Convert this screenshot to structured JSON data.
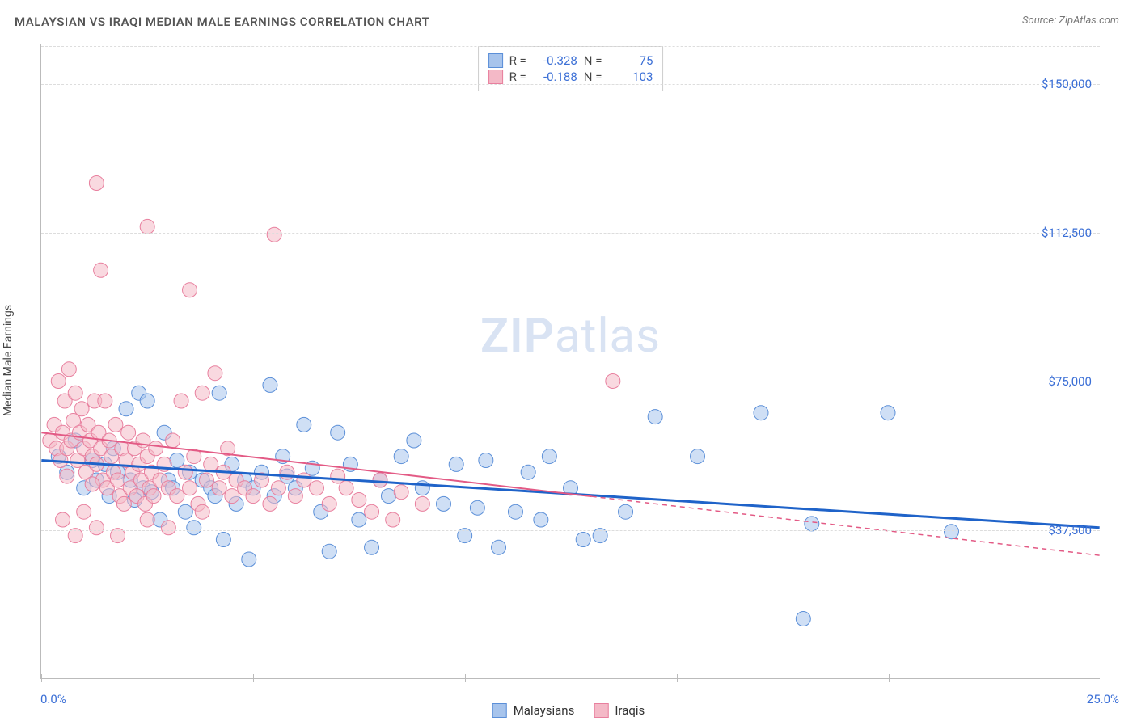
{
  "title": "MALAYSIAN VS IRAQI MEDIAN MALE EARNINGS CORRELATION CHART",
  "source_label": "Source: ZipAtlas.com",
  "y_axis_label": "Median Male Earnings",
  "watermark_main": "ZIP",
  "watermark_sub": "atlas",
  "chart": {
    "type": "scatter",
    "background_color": "#ffffff",
    "grid_color": "#dddddd",
    "axis_color": "#bbbbbb",
    "tick_label_color": "#3b6fd6",
    "xlim": [
      0,
      25
    ],
    "ylim": [
      0,
      160000
    ],
    "y_ticks": [
      {
        "value": 37500,
        "label": "$37,500"
      },
      {
        "value": 75000,
        "label": "$75,000"
      },
      {
        "value": 112500,
        "label": "$112,500"
      },
      {
        "value": 150000,
        "label": "$150,000"
      }
    ],
    "x_tick_positions": [
      0,
      5,
      10,
      15,
      20,
      25
    ],
    "x_min_label": "0.0%",
    "x_max_label": "25.0%",
    "marker_radius": 9,
    "marker_opacity": 0.55,
    "series": [
      {
        "name": "Malaysians",
        "color_fill": "#a7c4ec",
        "color_stroke": "#5b8fd8",
        "trend_color": "#1f63c9",
        "trend_width": 3,
        "trend_dash": "none",
        "R": "-0.328",
        "N": "75",
        "trend": {
          "x1": 0,
          "y1": 55000,
          "x2": 25,
          "y2": 38000
        },
        "points": [
          [
            0.4,
            56000
          ],
          [
            0.6,
            52000
          ],
          [
            0.8,
            60000
          ],
          [
            1.0,
            48000
          ],
          [
            1.2,
            55000
          ],
          [
            1.3,
            50000
          ],
          [
            1.5,
            54000
          ],
          [
            1.6,
            46000
          ],
          [
            1.7,
            58000
          ],
          [
            1.8,
            52000
          ],
          [
            2.0,
            68000
          ],
          [
            2.1,
            50000
          ],
          [
            2.2,
            45000
          ],
          [
            2.3,
            72000
          ],
          [
            2.4,
            48000
          ],
          [
            2.5,
            70000
          ],
          [
            2.6,
            47000
          ],
          [
            2.8,
            40000
          ],
          [
            2.9,
            62000
          ],
          [
            3.0,
            50000
          ],
          [
            3.1,
            48000
          ],
          [
            3.2,
            55000
          ],
          [
            3.4,
            42000
          ],
          [
            3.5,
            52000
          ],
          [
            3.6,
            38000
          ],
          [
            3.8,
            50000
          ],
          [
            4.0,
            48000
          ],
          [
            4.1,
            46000
          ],
          [
            4.2,
            72000
          ],
          [
            4.3,
            35000
          ],
          [
            4.5,
            54000
          ],
          [
            4.6,
            44000
          ],
          [
            4.8,
            50000
          ],
          [
            4.9,
            30000
          ],
          [
            5.0,
            48000
          ],
          [
            5.2,
            52000
          ],
          [
            5.4,
            74000
          ],
          [
            5.5,
            46000
          ],
          [
            5.7,
            56000
          ],
          [
            5.8,
            51000
          ],
          [
            6.0,
            48000
          ],
          [
            6.2,
            64000
          ],
          [
            6.4,
            53000
          ],
          [
            6.6,
            42000
          ],
          [
            6.8,
            32000
          ],
          [
            7.0,
            62000
          ],
          [
            7.3,
            54000
          ],
          [
            7.5,
            40000
          ],
          [
            7.8,
            33000
          ],
          [
            8.0,
            50000
          ],
          [
            8.2,
            46000
          ],
          [
            8.5,
            56000
          ],
          [
            8.8,
            60000
          ],
          [
            9.0,
            48000
          ],
          [
            9.5,
            44000
          ],
          [
            9.8,
            54000
          ],
          [
            10.0,
            36000
          ],
          [
            10.3,
            43000
          ],
          [
            10.5,
            55000
          ],
          [
            10.8,
            33000
          ],
          [
            11.2,
            42000
          ],
          [
            11.5,
            52000
          ],
          [
            11.8,
            40000
          ],
          [
            12.0,
            56000
          ],
          [
            12.5,
            48000
          ],
          [
            12.8,
            35000
          ],
          [
            13.2,
            36000
          ],
          [
            13.8,
            42000
          ],
          [
            14.5,
            66000
          ],
          [
            15.5,
            56000
          ],
          [
            17.0,
            67000
          ],
          [
            18.0,
            15000
          ],
          [
            18.2,
            39000
          ],
          [
            20.0,
            67000
          ],
          [
            21.5,
            37000
          ]
        ]
      },
      {
        "name": "Iraqis",
        "color_fill": "#f4b9c7",
        "color_stroke": "#e87f9e",
        "trend_color": "#e35a85",
        "trend_width": 2,
        "trend_dash": "solid_then_dash",
        "R": "-0.188",
        "N": "103",
        "trend": {
          "x1": 0,
          "y1": 62000,
          "x2": 25,
          "y2": 31000
        },
        "trend_solid_end_x": 13,
        "points": [
          [
            0.2,
            60000
          ],
          [
            0.3,
            64000
          ],
          [
            0.35,
            58000
          ],
          [
            0.4,
            75000
          ],
          [
            0.45,
            55000
          ],
          [
            0.5,
            62000
          ],
          [
            0.55,
            70000
          ],
          [
            0.6,
            58000
          ],
          [
            0.65,
            78000
          ],
          [
            0.7,
            60000
          ],
          [
            0.75,
            65000
          ],
          [
            0.8,
            72000
          ],
          [
            0.85,
            55000
          ],
          [
            0.9,
            62000
          ],
          [
            0.95,
            68000
          ],
          [
            1.0,
            58000
          ],
          [
            1.05,
            52000
          ],
          [
            1.1,
            64000
          ],
          [
            1.15,
            60000
          ],
          [
            1.2,
            56000
          ],
          [
            1.25,
            70000
          ],
          [
            1.3,
            54000
          ],
          [
            1.35,
            62000
          ],
          [
            1.4,
            58000
          ],
          [
            1.45,
            50000
          ],
          [
            1.5,
            70000
          ],
          [
            1.55,
            48000
          ],
          [
            1.6,
            60000
          ],
          [
            1.65,
            56000
          ],
          [
            1.7,
            52000
          ],
          [
            1.75,
            64000
          ],
          [
            1.8,
            50000
          ],
          [
            1.85,
            46000
          ],
          [
            1.9,
            58000
          ],
          [
            1.95,
            44000
          ],
          [
            2.0,
            55000
          ],
          [
            2.05,
            62000
          ],
          [
            2.1,
            48000
          ],
          [
            2.15,
            52000
          ],
          [
            2.2,
            58000
          ],
          [
            2.25,
            46000
          ],
          [
            2.3,
            54000
          ],
          [
            2.35,
            50000
          ],
          [
            2.4,
            60000
          ],
          [
            2.45,
            44000
          ],
          [
            2.5,
            56000
          ],
          [
            2.55,
            48000
          ],
          [
            2.6,
            52000
          ],
          [
            2.65,
            46000
          ],
          [
            2.7,
            58000
          ],
          [
            2.8,
            50000
          ],
          [
            2.9,
            54000
          ],
          [
            3.0,
            48000
          ],
          [
            3.1,
            60000
          ],
          [
            3.2,
            46000
          ],
          [
            3.3,
            70000
          ],
          [
            3.4,
            52000
          ],
          [
            3.5,
            48000
          ],
          [
            3.6,
            56000
          ],
          [
            3.7,
            44000
          ],
          [
            3.8,
            72000
          ],
          [
            3.9,
            50000
          ],
          [
            4.0,
            54000
          ],
          [
            4.1,
            77000
          ],
          [
            4.2,
            48000
          ],
          [
            4.3,
            52000
          ],
          [
            4.4,
            58000
          ],
          [
            4.5,
            46000
          ],
          [
            4.6,
            50000
          ],
          [
            4.8,
            48000
          ],
          [
            5.0,
            46000
          ],
          [
            5.2,
            50000
          ],
          [
            5.4,
            44000
          ],
          [
            5.6,
            48000
          ],
          [
            5.8,
            52000
          ],
          [
            6.0,
            46000
          ],
          [
            6.2,
            50000
          ],
          [
            6.5,
            48000
          ],
          [
            6.8,
            44000
          ],
          [
            7.0,
            51000
          ],
          [
            7.2,
            48000
          ],
          [
            7.5,
            45000
          ],
          [
            7.8,
            42000
          ],
          [
            8.0,
            50000
          ],
          [
            8.3,
            40000
          ],
          [
            8.5,
            47000
          ],
          [
            1.3,
            125000
          ],
          [
            2.5,
            114000
          ],
          [
            5.5,
            112000
          ],
          [
            1.4,
            103000
          ],
          [
            3.5,
            98000
          ],
          [
            0.5,
            40000
          ],
          [
            0.8,
            36000
          ],
          [
            1.0,
            42000
          ],
          [
            1.3,
            38000
          ],
          [
            1.8,
            36000
          ],
          [
            2.5,
            40000
          ],
          [
            3.0,
            38000
          ],
          [
            3.8,
            42000
          ],
          [
            0.6,
            51000
          ],
          [
            1.2,
            49000
          ],
          [
            13.5,
            75000
          ],
          [
            9.0,
            44000
          ]
        ]
      }
    ]
  },
  "legend": {
    "series1_label": "Malaysians",
    "series2_label": "Iraqis"
  },
  "stats": {
    "r_label": "R =",
    "n_label": "N ="
  }
}
